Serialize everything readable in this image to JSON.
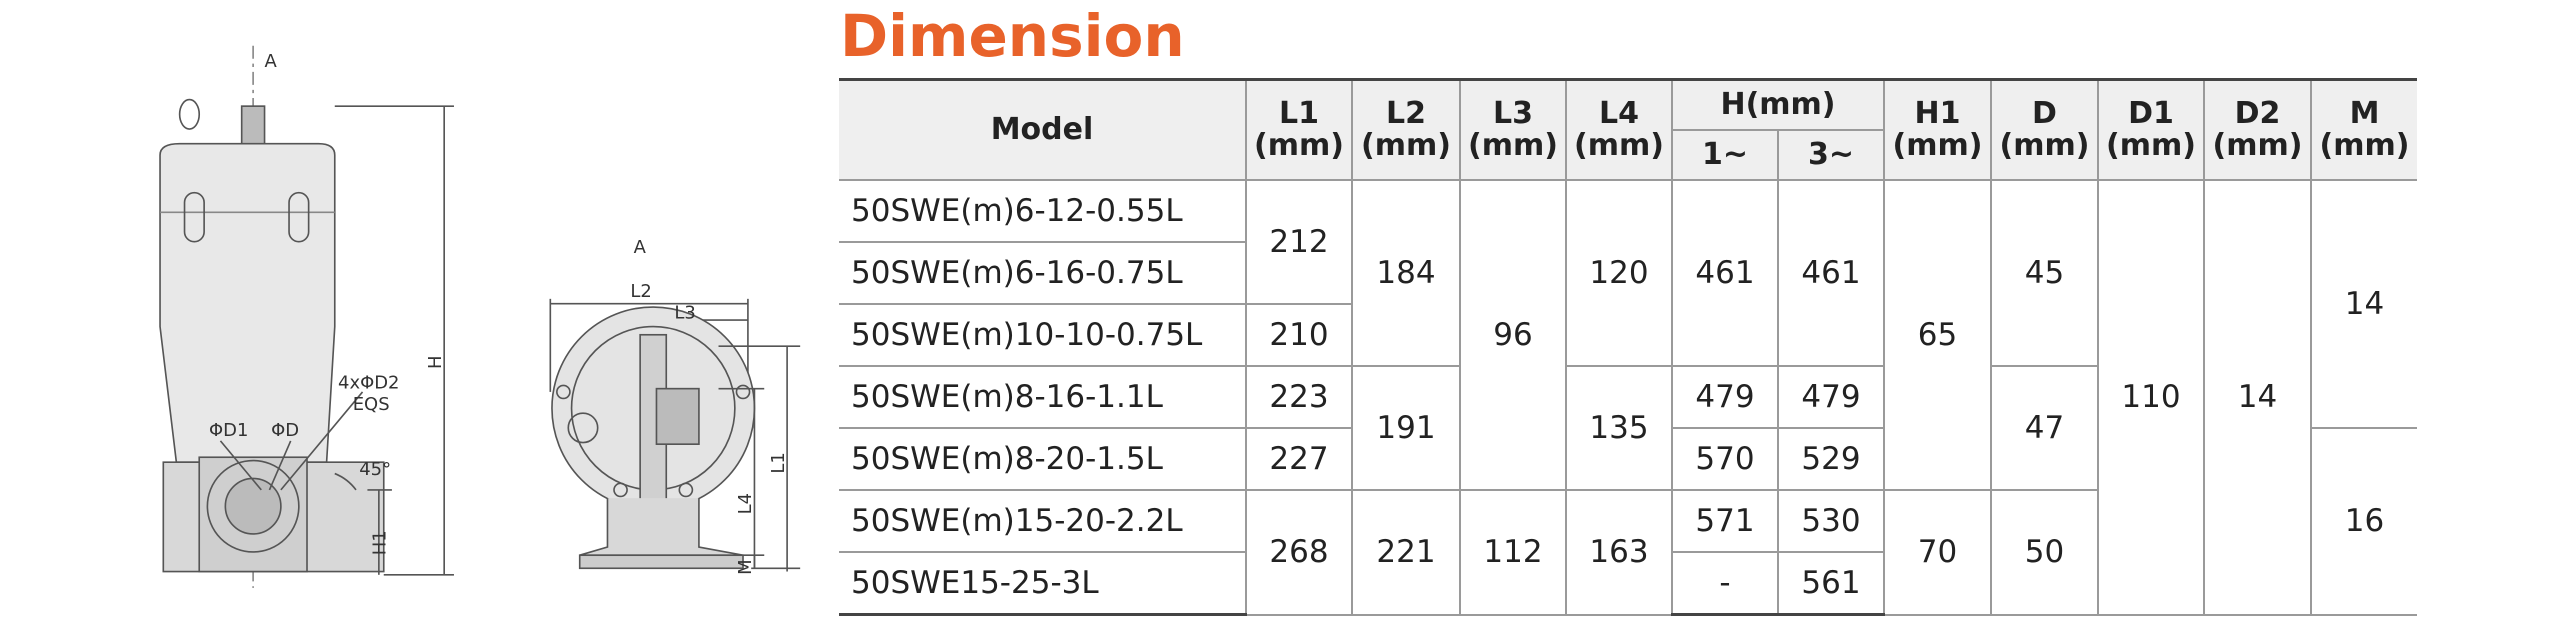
{
  "drawing": {
    "elevation": {
      "view": "A",
      "d1": "ΦD1",
      "d": "ΦD",
      "holes": "4xΦD2",
      "eqs": "EQS",
      "angle": "45°",
      "h": "H",
      "h1": "H1"
    },
    "plan": {
      "view": "A",
      "l2": "L2",
      "l3": "L3",
      "l1": "L1",
      "l4": "L4",
      "m": "M"
    }
  },
  "title": "Dimension",
  "table": {
    "header": {
      "model": "Model",
      "h": "H(mm)",
      "phase1": "1~",
      "phase3": "3~",
      "columns": [
        {
          "name": "L1",
          "unit": "(mm)"
        },
        {
          "name": "L2",
          "unit": "(mm)"
        },
        {
          "name": "L3",
          "unit": "(mm)"
        },
        {
          "name": "L4",
          "unit": "(mm)"
        },
        {
          "name": "H1",
          "unit": "(mm)"
        },
        {
          "name": "D",
          "unit": "(mm)"
        },
        {
          "name": "D1",
          "unit": "(mm)"
        },
        {
          "name": "D2",
          "unit": "(mm)"
        },
        {
          "name": "M",
          "unit": "(mm)"
        }
      ]
    },
    "rows": [
      [
        "50SWE(m)6-12-0.55L",
        212,
        184,
        96,
        120,
        461,
        461,
        65,
        45,
        110,
        14,
        14
      ],
      [
        "50SWE(m)6-16-0.75L"
      ],
      [
        "50SWE(m)10-10-0.75L",
        210
      ],
      [
        "50SWE(m)8-16-1.1L",
        223,
        191,
        135,
        479,
        479,
        47
      ],
      [
        "50SWE(m)8-20-1.5L",
        227,
        570,
        529,
        16
      ],
      [
        "50SWE(m)15-20-2.2L",
        268,
        221,
        112,
        163,
        571,
        530,
        70,
        50
      ],
      [
        "50SWE15-25-3L",
        "-",
        561
      ]
    ]
  }
}
